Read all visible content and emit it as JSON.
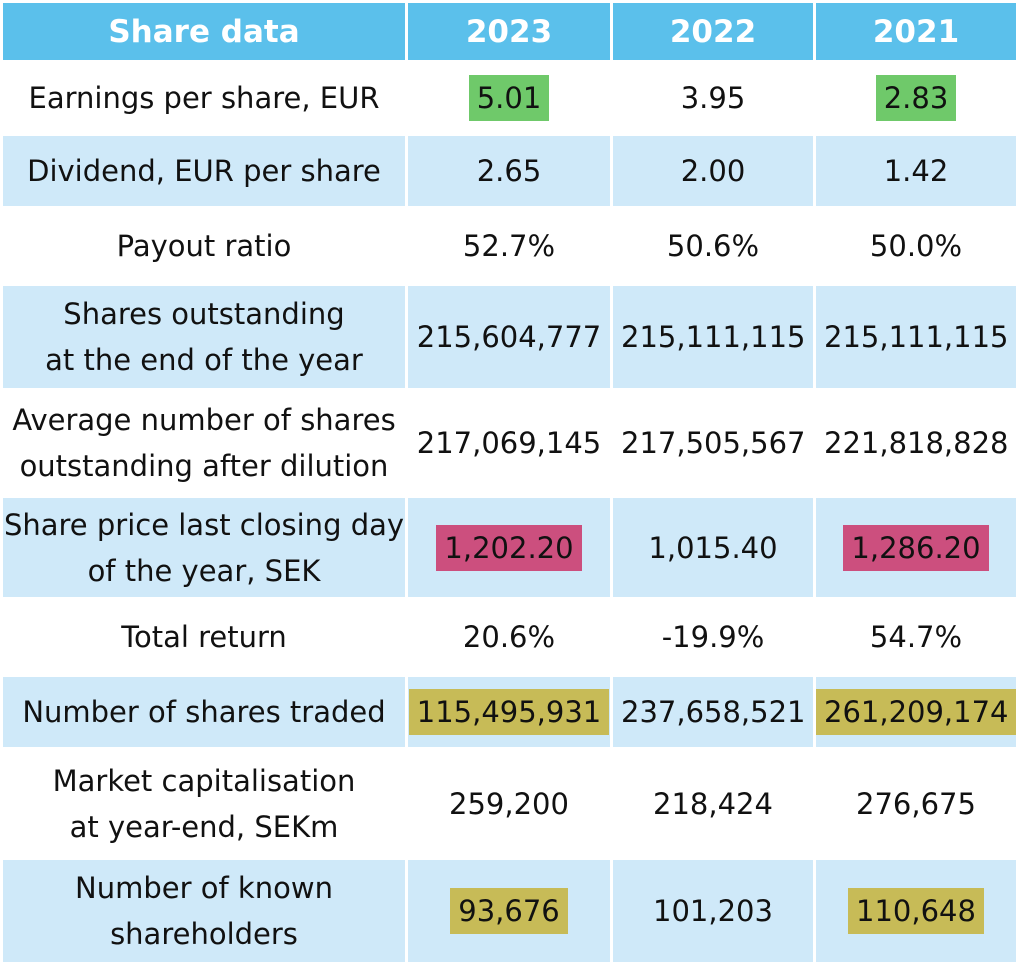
{
  "header": {
    "label": "Share data",
    "years": [
      "2023",
      "2022",
      "2021"
    ]
  },
  "highlight_colors": {
    "green": "#6fc96a",
    "pink": "#cc4f7e",
    "olive": "#c7bb57",
    "header_bg": "#5bc0eb",
    "row_alt_bg": "#cfe9f9"
  },
  "rows": [
    {
      "label": "Earnings per share, EUR",
      "values": [
        "5.01",
        "3.95",
        "2.83"
      ],
      "highlight": [
        "green",
        "",
        "green"
      ]
    },
    {
      "label": "Dividend, EUR per share",
      "values": [
        "2.65",
        "2.00",
        "1.42"
      ],
      "highlight": [
        "",
        "",
        ""
      ]
    },
    {
      "label": "Payout ratio",
      "values": [
        "52.7%",
        "50.6%",
        "50.0%"
      ],
      "highlight": [
        "",
        "",
        ""
      ]
    },
    {
      "label": "Shares outstanding\nat the end of the year",
      "values": [
        "215,604,777",
        "215,111,115",
        "215,111,115"
      ],
      "highlight": [
        "",
        "",
        ""
      ]
    },
    {
      "label": "Average number of shares\noutstanding after dilution",
      "values": [
        "217,069,145",
        "217,505,567",
        "221,818,828"
      ],
      "highlight": [
        "",
        "",
        ""
      ]
    },
    {
      "label": "Share price last closing day\nof the year, SEK",
      "values": [
        "1,202.20",
        "1,015.40",
        "1,286.20"
      ],
      "highlight": [
        "pink",
        "",
        "pink"
      ]
    },
    {
      "label": "Total return",
      "values": [
        "20.6%",
        "-19.9%",
        "54.7%"
      ],
      "highlight": [
        "",
        "",
        ""
      ]
    },
    {
      "label": "Number of shares traded",
      "values": [
        "115,495,931",
        "237,658,521",
        "261,209,174"
      ],
      "highlight": [
        "olive",
        "",
        "olive"
      ]
    },
    {
      "label": "Market capitalisation\nat year-end, SEKm",
      "values": [
        "259,200",
        "218,424",
        "276,675"
      ],
      "highlight": [
        "",
        "",
        ""
      ]
    },
    {
      "label": "Number of known\nshareholders",
      "values": [
        "93,676",
        "101,203",
        "110,648"
      ],
      "highlight": [
        "olive",
        "",
        "olive"
      ]
    }
  ]
}
